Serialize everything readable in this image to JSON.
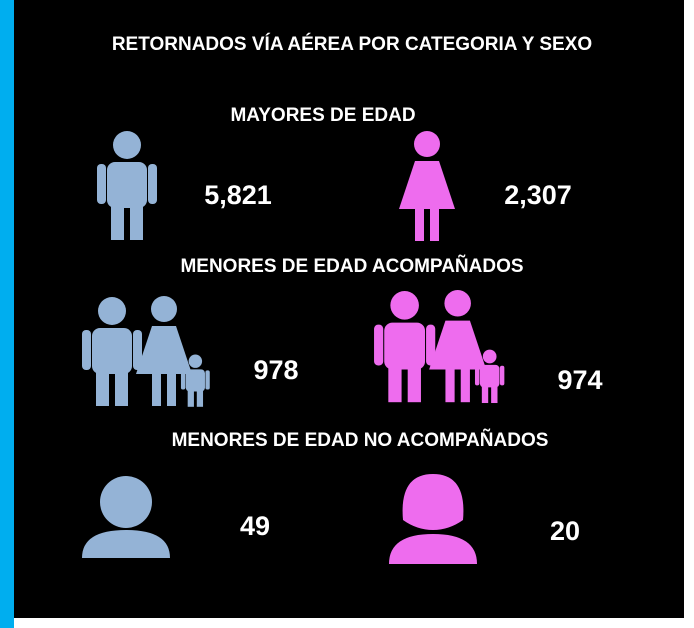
{
  "title": "RETORNADOS VÍA AÉREA POR CATEGORIA Y SEXO",
  "sections": [
    {
      "label": "MAYORES DE EDAD",
      "values": [
        "5,821",
        "2,307"
      ]
    },
    {
      "label": "MENORES DE EDAD ACOMPAÑADOS",
      "values": [
        "978",
        "974"
      ]
    },
    {
      "label": "MENORES DE EDAD NO ACOMPAÑADOS",
      "values": [
        "49",
        "20"
      ]
    }
  ]
}
